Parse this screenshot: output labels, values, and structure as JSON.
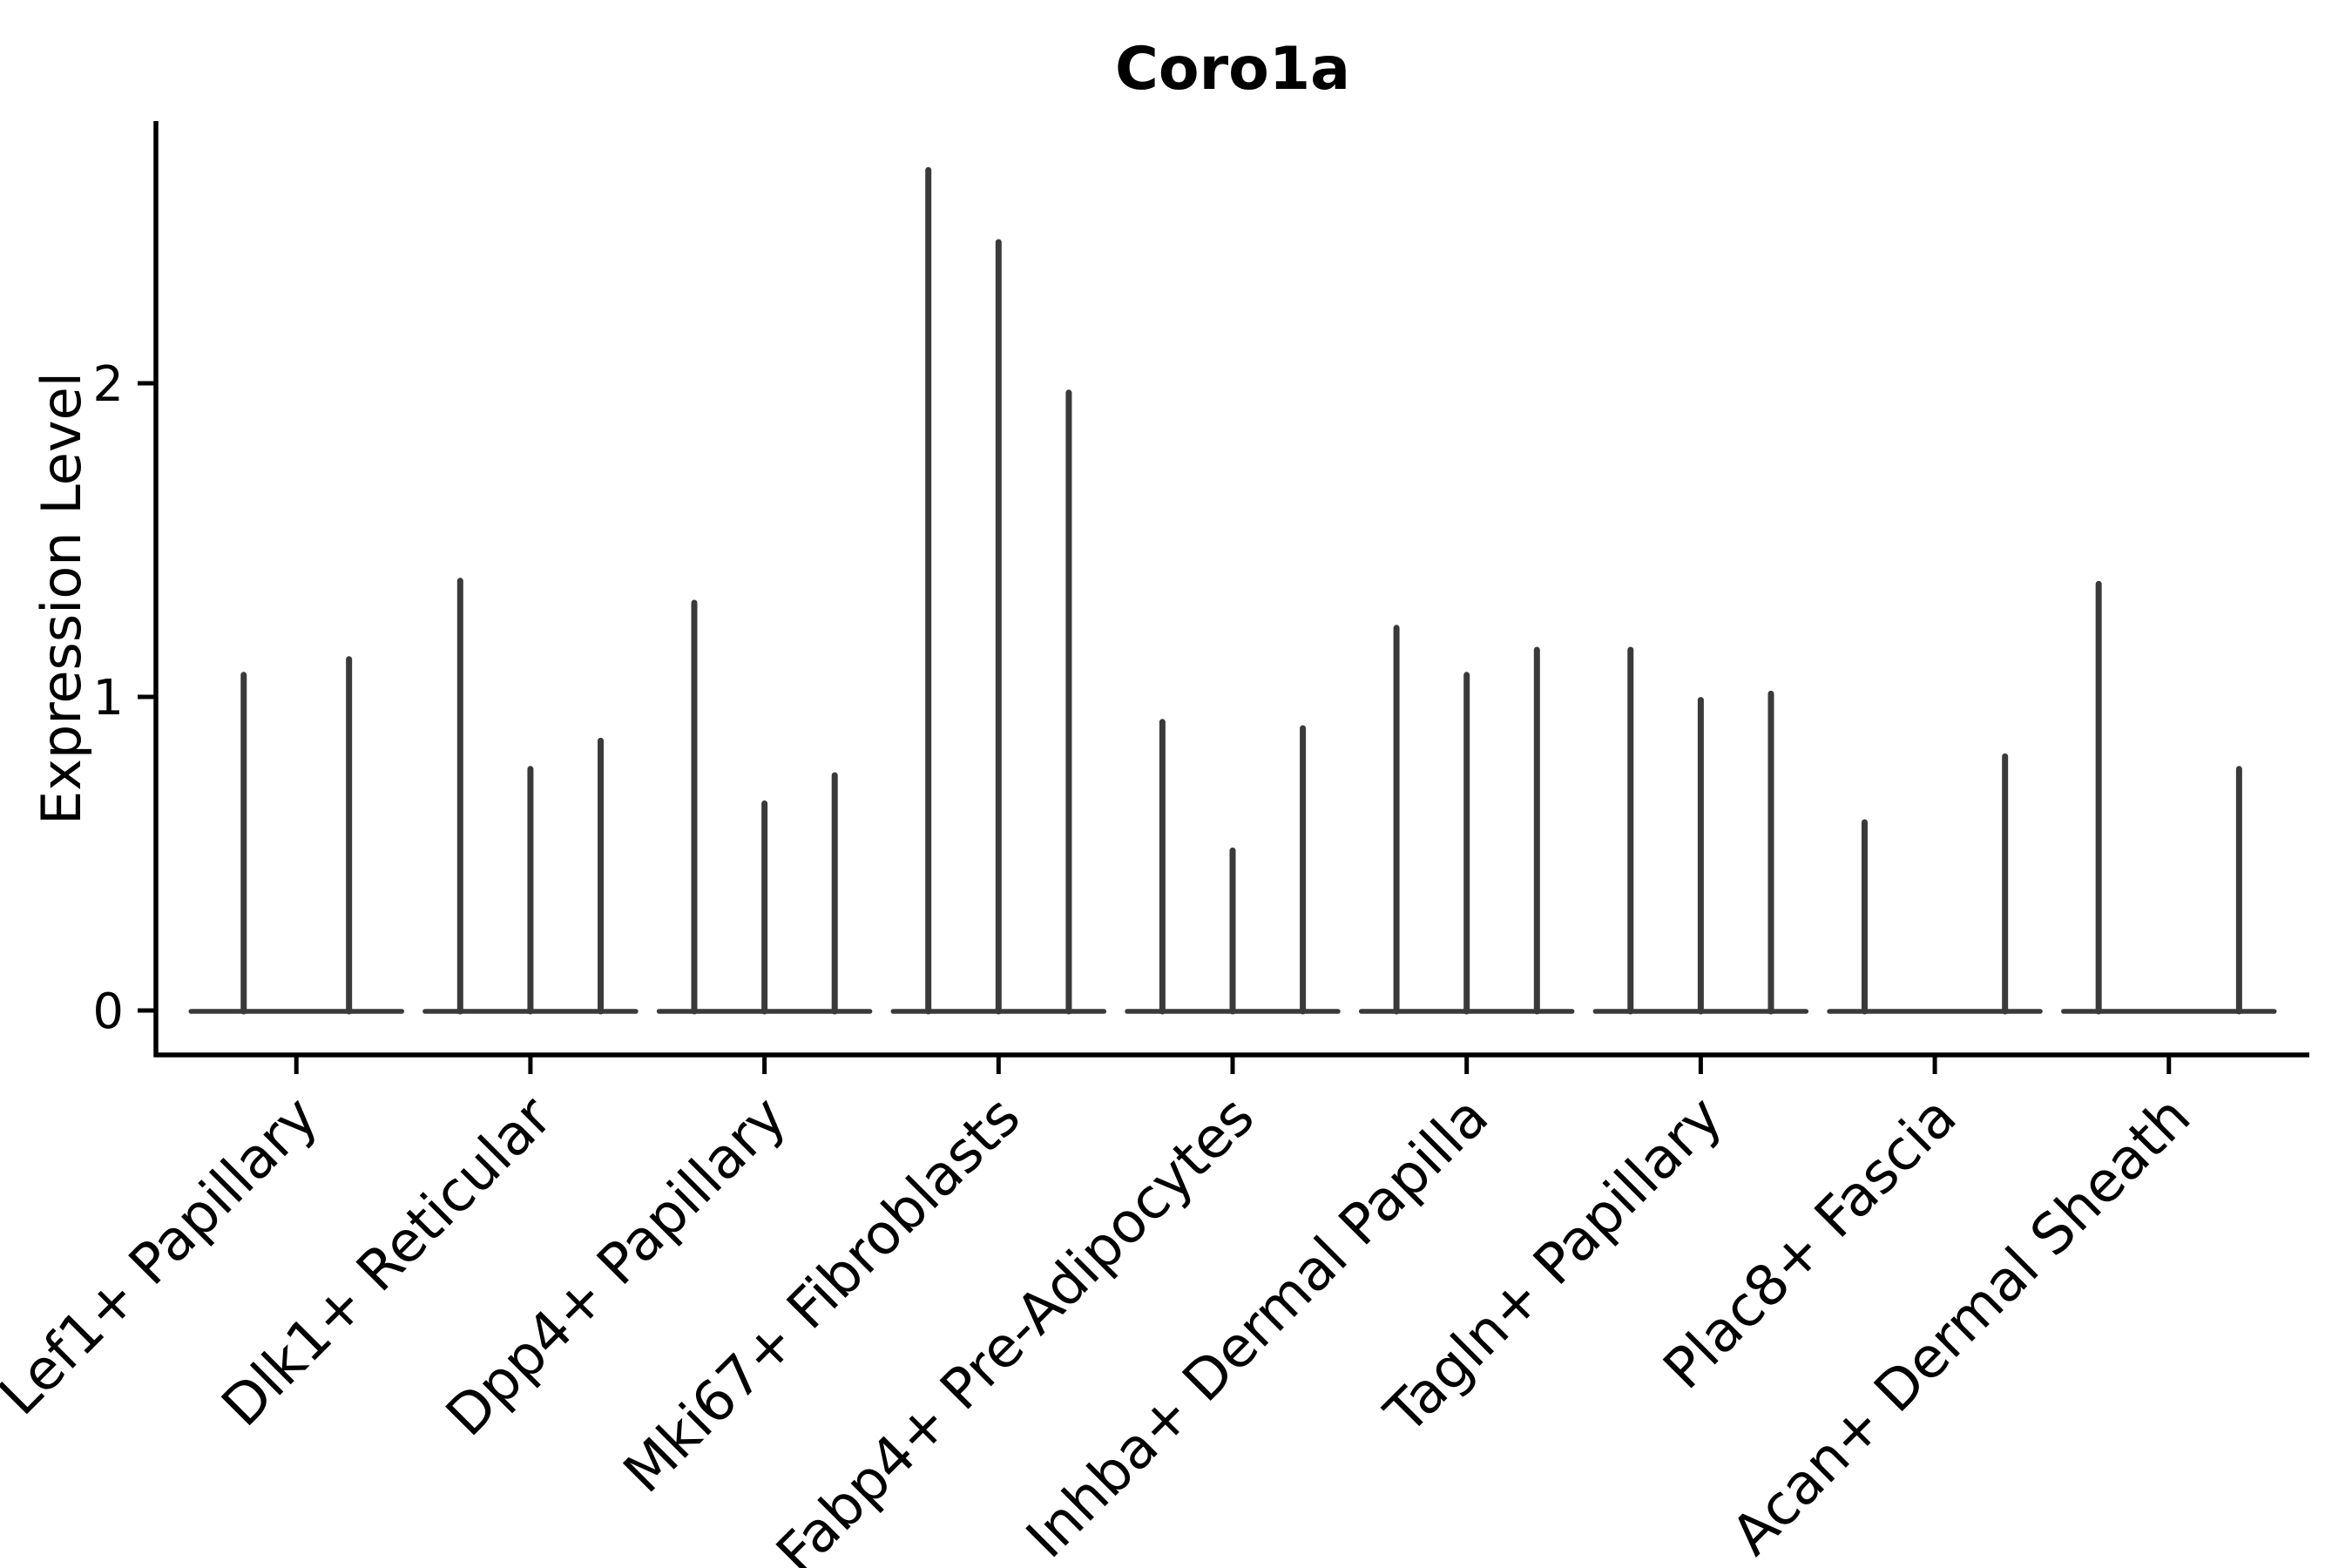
{
  "chart_data": {
    "type": "violin",
    "title": "Coro1a",
    "ylabel": "Expression Level",
    "xlabel": "",
    "yticks": [
      0,
      1,
      2
    ],
    "ylim": [
      -0.135,
      2.835
    ],
    "grid": false,
    "legend": false,
    "description": "Violin plot of Coro1a expression per fibroblast cluster; violins are collapsed to thin vertical spikes (sparse expression), each group shows up to 3 violins, flat baseline at 0",
    "categories": [
      "Lef1+ Papillary",
      "Dlk1+ Reticular",
      "Dpp4+ Papillary",
      "Mki67+ Fibroblasts",
      "Fabp4+ Pre-Adipocytes",
      "Inhba+ Dermal Papilla",
      "Tagln+ Papillary",
      "Plac8+ Fascia",
      "Acan+ Dermal Sheath"
    ],
    "groups": [
      {
        "category": "Lef1+ Papillary",
        "violins": [
          {
            "offset": -0.225,
            "max": 1.07
          },
          {
            "offset": 0.225,
            "max": 1.12
          }
        ]
      },
      {
        "category": "Dlk1+ Reticular",
        "violins": [
          {
            "offset": -0.3,
            "max": 1.37
          },
          {
            "offset": 0,
            "max": 0.77
          },
          {
            "offset": 0.3,
            "max": 0.86
          }
        ]
      },
      {
        "category": "Dpp4+ Papillary",
        "violins": [
          {
            "offset": -0.3,
            "max": 1.3
          },
          {
            "offset": 0,
            "max": 0.66
          },
          {
            "offset": 0.3,
            "max": 0.75
          }
        ]
      },
      {
        "category": "Mki67+ Fibroblasts",
        "violins": [
          {
            "offset": -0.3,
            "max": 2.68
          },
          {
            "offset": 0,
            "max": 2.45
          },
          {
            "offset": 0.3,
            "max": 1.97
          }
        ]
      },
      {
        "category": "Fabp4+ Pre-Adipocytes",
        "violins": [
          {
            "offset": -0.3,
            "max": 0.92
          },
          {
            "offset": 0,
            "max": 0.51
          },
          {
            "offset": 0.3,
            "max": 0.9
          }
        ]
      },
      {
        "category": "Inhba+ Dermal Papilla",
        "violins": [
          {
            "offset": -0.3,
            "max": 1.22
          },
          {
            "offset": 0,
            "max": 1.07
          },
          {
            "offset": 0.3,
            "max": 1.15
          }
        ]
      },
      {
        "category": "Tagln+ Papillary",
        "violins": [
          {
            "offset": -0.3,
            "max": 1.15
          },
          {
            "offset": 0,
            "max": 0.99
          },
          {
            "offset": 0.3,
            "max": 1.01
          }
        ]
      },
      {
        "category": "Plac8+ Fascia",
        "violins": [
          {
            "offset": -0.3,
            "max": 0.6
          },
          {
            "offset": 0,
            "max": 0.0
          },
          {
            "offset": 0.3,
            "max": 0.81
          }
        ]
      },
      {
        "category": "Acan+ Dermal Sheath",
        "violins": [
          {
            "offset": -0.3,
            "max": 1.36
          },
          {
            "offset": 0,
            "max": 0.0
          },
          {
            "offset": 0.3,
            "max": 0.77
          }
        ]
      }
    ],
    "colors": {
      "violin": "#3a3a3a",
      "axis": "#000000",
      "text": "#000000",
      "background": "#ffffff"
    }
  }
}
